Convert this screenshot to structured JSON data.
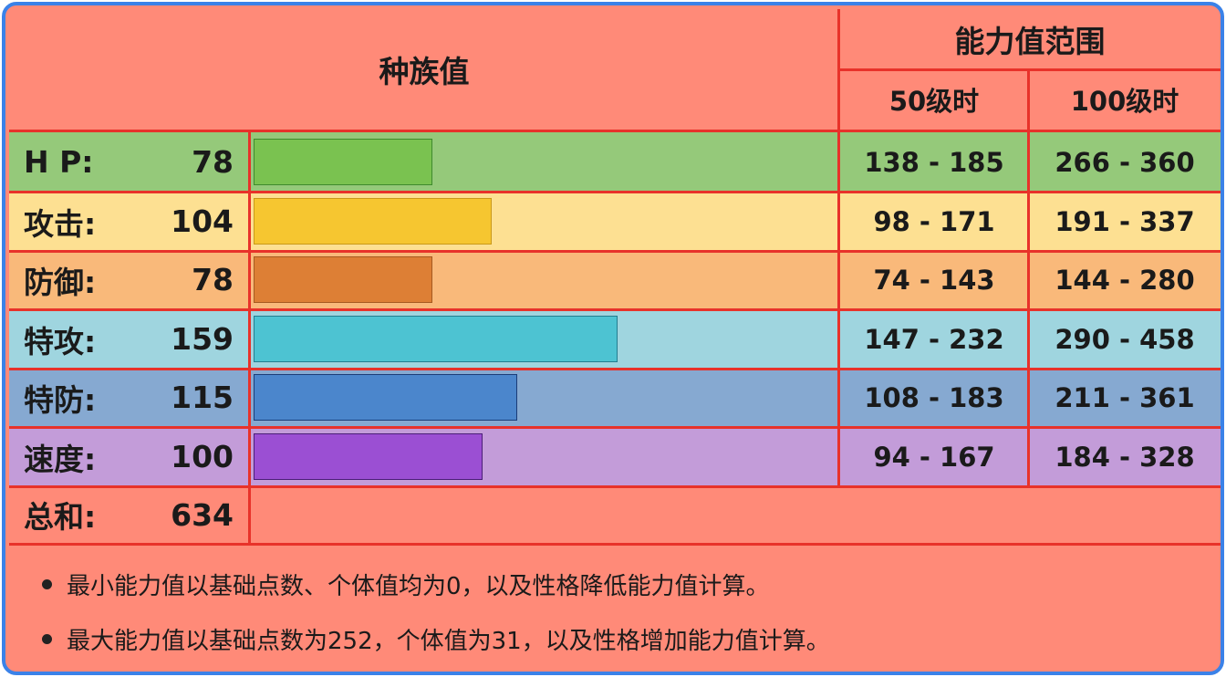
{
  "header": {
    "base_stats": "种族值",
    "range_title": "能力值范围",
    "lv50": "50级时",
    "lv100": "100级时"
  },
  "chart_data": {
    "type": "bar",
    "title": "种族值",
    "max_scale": 255,
    "categories": [
      "H P:",
      "攻击:",
      "防御:",
      "特攻:",
      "特防:",
      "速度:"
    ],
    "values": [
      78,
      104,
      78,
      159,
      115,
      100
    ],
    "ranges_lv50": [
      "138 - 185",
      "98 - 171",
      "74 - 143",
      "147 - 232",
      "108 - 183",
      "94 - 167"
    ],
    "ranges_lv100": [
      "266 - 360",
      "191 - 337",
      "144 - 280",
      "290 - 458",
      "211 - 361",
      "184 - 328"
    ],
    "row_colors": [
      "#95c97a",
      "#fde092",
      "#f9b97a",
      "#9fd5df",
      "#86a9d1",
      "#c39cd9"
    ],
    "bar_fill_colors": [
      "#7ac250",
      "#f6c630",
      "#dd7f35",
      "#4dc3d2",
      "#4b86cc",
      "#9b4fd3"
    ],
    "bar_border_colors": [
      "#3f8a2e",
      "#c9991a",
      "#a65a20",
      "#257d8f",
      "#1b3d78",
      "#4b1e78"
    ],
    "total_label": "总和:",
    "total_value": "634"
  },
  "notes": [
    "最小能力值以基础点数、个体值均为0，以及性格降低能力值计算。",
    "最大能力值以基础点数为252，个体值为31，以及性格增加能力值计算。"
  ]
}
